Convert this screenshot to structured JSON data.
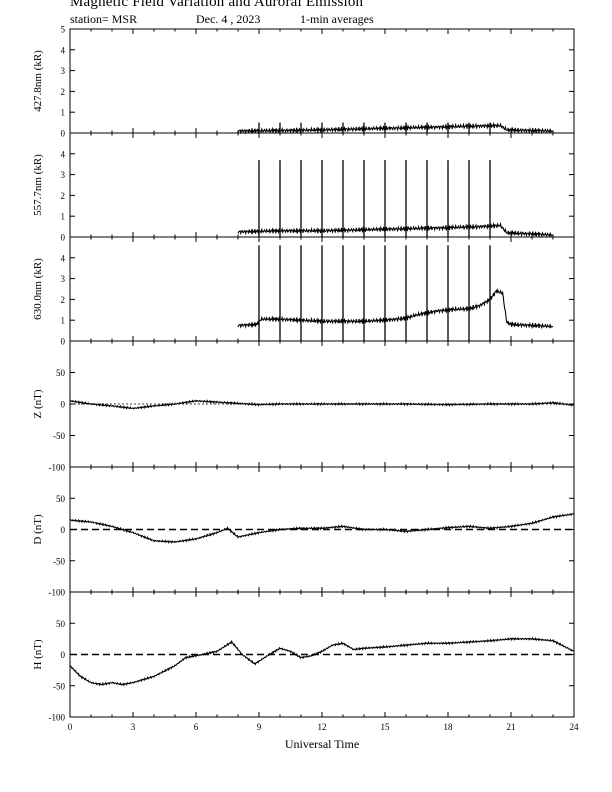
{
  "header": {
    "title": "Magnetic Field Variation and Auroral Emission",
    "station": "station= MSR",
    "date": "Dec. 4  , 2023",
    "averaging": "1-min averages"
  },
  "chart_data": [
    {
      "type": "line",
      "panel": "427.8nm",
      "ylabel": "427.8nm (kR)",
      "ylim": [
        0,
        5
      ],
      "yticks": [
        0,
        1,
        2,
        3,
        4,
        5
      ],
      "xlim": [
        0,
        24
      ],
      "series": [
        {
          "x": [
            8.0,
            10.0,
            12.0,
            14.0,
            16.0,
            18.0,
            20.0,
            20.5,
            20.8,
            22.0,
            23.0
          ],
          "values": [
            0.1,
            0.12,
            0.15,
            0.2,
            0.25,
            0.3,
            0.35,
            0.35,
            0.15,
            0.12,
            0.1
          ]
        }
      ],
      "spikes": {
        "x": [
          9,
          10,
          11,
          12,
          13,
          14,
          15,
          16,
          17,
          18,
          19,
          20
        ],
        "peak": 0.5
      }
    },
    {
      "type": "line",
      "panel": "557.7nm",
      "ylabel": "557.7nm (kR)",
      "ylim": [
        0,
        5
      ],
      "yticks": [
        0,
        1,
        2,
        3,
        4
      ],
      "xlim": [
        0,
        24
      ],
      "series": [
        {
          "x": [
            8.0,
            10.0,
            12.0,
            14.0,
            16.0,
            18.0,
            19.5,
            20.5,
            20.8,
            22.0,
            23.0
          ],
          "values": [
            0.25,
            0.3,
            0.3,
            0.35,
            0.4,
            0.45,
            0.5,
            0.55,
            0.2,
            0.15,
            0.1
          ]
        }
      ],
      "spikes": {
        "x": [
          9,
          10,
          11,
          12,
          13,
          14,
          15,
          16,
          17,
          18,
          19,
          20
        ],
        "peak": 3.7
      }
    },
    {
      "type": "line",
      "panel": "630.0nm",
      "ylabel": "630.0nm (kR)",
      "ylim": [
        0,
        5
      ],
      "yticks": [
        0,
        1,
        2,
        3,
        4
      ],
      "xlim": [
        0,
        24
      ],
      "series": [
        {
          "x": [
            8.0,
            8.9,
            9.1,
            10.0,
            11.0,
            12.0,
            13.0,
            14.0,
            15.0,
            16.0,
            16.5,
            17.0,
            17.5,
            18.0,
            19.0,
            19.5,
            20.0,
            20.3,
            20.6,
            20.8,
            21.0,
            22.0,
            23.0
          ],
          "values": [
            0.75,
            0.8,
            1.05,
            1.05,
            1.0,
            0.95,
            0.95,
            0.95,
            1.0,
            1.1,
            1.25,
            1.35,
            1.45,
            1.5,
            1.55,
            1.7,
            2.0,
            2.4,
            2.3,
            0.9,
            0.8,
            0.75,
            0.7
          ]
        }
      ],
      "spikes": {
        "x": [
          9,
          10,
          11,
          12,
          13,
          14,
          15,
          16,
          17,
          18,
          19,
          20
        ],
        "peak": 4.6
      }
    },
    {
      "type": "line",
      "panel": "Z",
      "ylabel": "Z (nT)",
      "ylim": [
        -100,
        100
      ],
      "yticks": [
        -100,
        -50,
        0,
        50
      ],
      "xlim": [
        0,
        24
      ],
      "zero_line": "dotted",
      "series": [
        {
          "x": [
            0,
            1,
            2,
            3,
            4,
            5,
            6,
            7,
            8,
            9,
            10,
            12,
            14,
            16,
            18,
            20,
            22,
            23,
            24
          ],
          "values": [
            5,
            0,
            -3,
            -7,
            -3,
            0,
            5,
            3,
            1,
            -1,
            0,
            0,
            0,
            0,
            -1,
            0,
            0,
            2,
            -2
          ]
        }
      ]
    },
    {
      "type": "line",
      "panel": "D",
      "ylabel": "D (nT)",
      "ylim": [
        -100,
        100
      ],
      "yticks": [
        -100,
        -50,
        0,
        50
      ],
      "xlim": [
        0,
        24
      ],
      "zero_line": "dashed",
      "series": [
        {
          "x": [
            0,
            1,
            2,
            3,
            4,
            5,
            6,
            7,
            7.5,
            8,
            9,
            10,
            11,
            12,
            13,
            14,
            15,
            16,
            17,
            18,
            19,
            20,
            21,
            22,
            23,
            24
          ],
          "values": [
            15,
            12,
            5,
            -5,
            -18,
            -20,
            -15,
            -5,
            2,
            -12,
            -5,
            0,
            2,
            2,
            5,
            0,
            0,
            -3,
            0,
            3,
            5,
            2,
            5,
            10,
            20,
            25
          ]
        }
      ]
    },
    {
      "type": "line",
      "panel": "H",
      "ylabel": "H (nT)",
      "ylim": [
        -100,
        100
      ],
      "yticks": [
        -100,
        -50,
        0,
        50
      ],
      "xlim": [
        0,
        24
      ],
      "xticks": [
        0,
        3,
        6,
        9,
        12,
        15,
        18,
        21,
        24
      ],
      "xlabel": "Universal Time",
      "zero_line": "dashed",
      "series": [
        {
          "x": [
            0,
            0.5,
            1,
            1.5,
            2,
            2.5,
            3,
            4,
            5,
            5.5,
            6,
            7,
            7.7,
            8.2,
            8.8,
            9.5,
            10,
            10.5,
            11,
            11.5,
            12,
            12.5,
            13,
            13.5,
            14,
            15,
            16,
            17,
            18,
            19,
            20,
            21,
            22,
            23,
            24
          ],
          "values": [
            -18,
            -35,
            -45,
            -48,
            -45,
            -48,
            -45,
            -35,
            -18,
            -5,
            -2,
            5,
            20,
            0,
            -15,
            0,
            10,
            5,
            -5,
            -2,
            5,
            15,
            18,
            8,
            10,
            12,
            15,
            18,
            18,
            20,
            22,
            25,
            25,
            22,
            5
          ]
        }
      ]
    }
  ]
}
